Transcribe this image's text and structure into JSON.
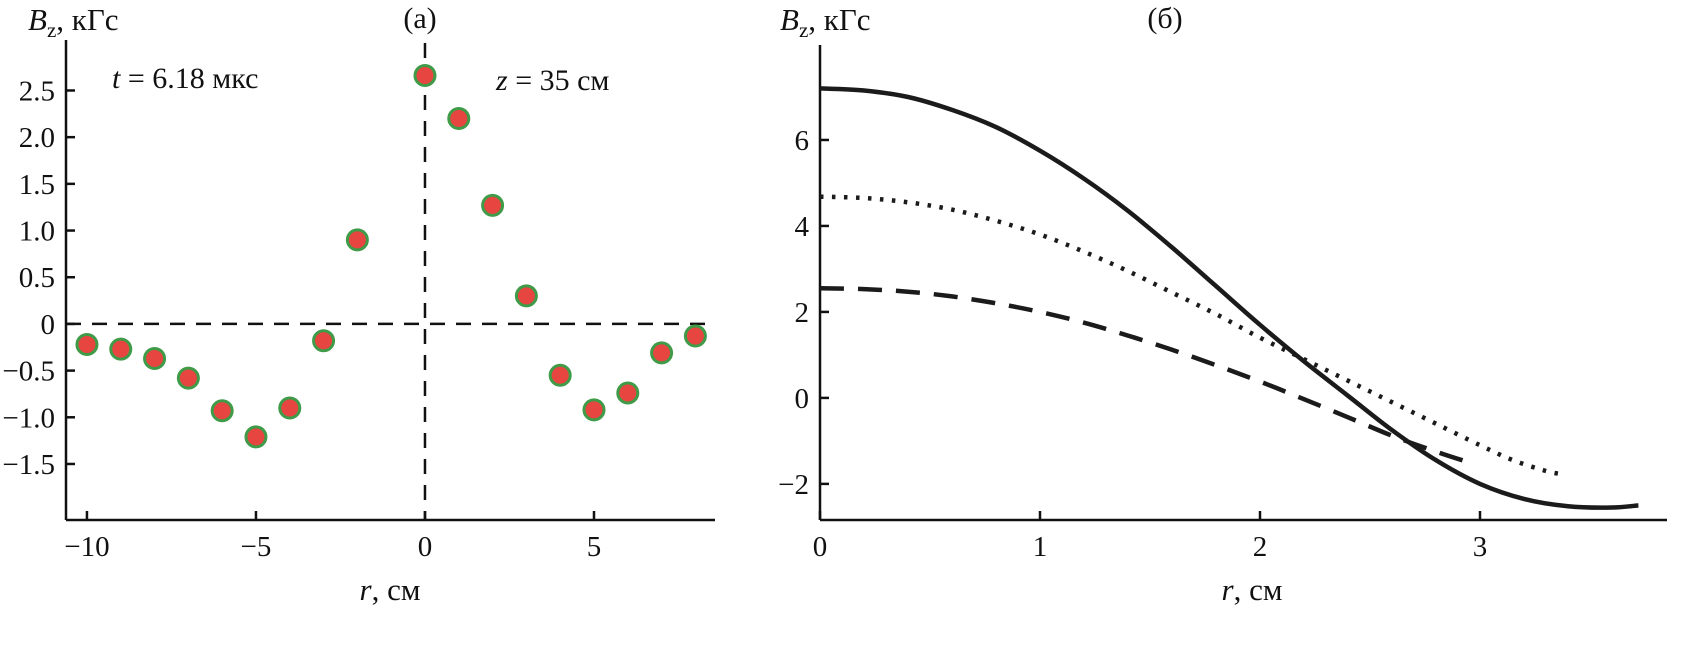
{
  "figure": {
    "background": "#ffffff",
    "axis_color": "#111111"
  },
  "chart_data": [
    {
      "type": "scatter",
      "panel_label": "(а)",
      "ylabel": {
        "var": "B",
        "sub": "z",
        "rest": ", кГс"
      },
      "xlabel": {
        "var": "r",
        "rest": ", см"
      },
      "annotations": [
        {
          "var": "t",
          "rest": " = 6.18 мкс"
        },
        {
          "var": "z",
          "rest": " = 35 см"
        }
      ],
      "xlim": [
        -10.62,
        8.58
      ],
      "ylim": [
        -2.1,
        2.88
      ],
      "xtick_values": [
        -10,
        -5,
        0,
        5
      ],
      "xtick_labels": [
        "−10",
        "−5",
        "0",
        "5"
      ],
      "ytick_values": [
        2.5,
        2,
        1.5,
        1,
        0.5,
        0,
        -0.5,
        -1,
        -1.5
      ],
      "ytick_labels": [
        "2.5",
        "2.0",
        "1.5",
        "1.0",
        "0.5",
        "0",
        "−0.5",
        "−1.0",
        "−1.5"
      ],
      "reference_lines": {
        "horizontal_y": 0,
        "vertical_x": 0,
        "style": "dashed"
      },
      "marker": {
        "fill": "#e64540",
        "stroke": "#3f9b48"
      },
      "points": [
        [
          -10,
          -0.22
        ],
        [
          -9,
          -0.27
        ],
        [
          -8,
          -0.37
        ],
        [
          -7,
          -0.58
        ],
        [
          -6,
          -0.93
        ],
        [
          -5,
          -1.21
        ],
        [
          -4,
          -0.9
        ],
        [
          -3,
          -0.18
        ],
        [
          -2,
          0.9
        ],
        [
          0,
          2.66
        ],
        [
          1,
          2.2
        ],
        [
          2,
          1.27
        ],
        [
          3,
          0.3
        ],
        [
          4,
          -0.55
        ],
        [
          5,
          -0.92
        ],
        [
          6,
          -0.74
        ],
        [
          7,
          -0.31
        ],
        [
          8,
          -0.13
        ]
      ]
    },
    {
      "type": "line",
      "panel_label": "(б)",
      "ylabel": {
        "var": "B",
        "sub": "z",
        "rest": ", кГс"
      },
      "xlabel": {
        "var": "r",
        "rest": ", см"
      },
      "xlim": [
        0,
        3.85
      ],
      "ylim": [
        -2.84,
        7.86
      ],
      "xtick_values": [
        0,
        1,
        2,
        3
      ],
      "xtick_labels": [
        "0",
        "1",
        "2",
        "3"
      ],
      "ytick_values": [
        6,
        4,
        2,
        0,
        -2
      ],
      "ytick_labels": [
        "6",
        "4",
        "2",
        "0",
        "−2"
      ],
      "line_color": "#1b1b1b",
      "series": [
        {
          "name": "solid",
          "dash": "solid",
          "x": [
            0,
            0.2,
            0.4,
            0.6,
            0.8,
            1.0,
            1.2,
            1.4,
            1.6,
            1.8,
            2.0,
            2.2,
            2.4,
            2.6,
            2.8,
            3.0,
            3.2,
            3.4,
            3.6,
            3.72
          ],
          "y": [
            7.2,
            7.15,
            7.0,
            6.7,
            6.3,
            5.75,
            5.1,
            4.35,
            3.5,
            2.6,
            1.7,
            0.85,
            0.05,
            -0.75,
            -1.45,
            -2.0,
            -2.35,
            -2.52,
            -2.55,
            -2.5
          ]
        },
        {
          "name": "dotted",
          "dash": "dotted",
          "x": [
            0,
            0.2,
            0.4,
            0.6,
            0.8,
            1.0,
            1.2,
            1.4,
            1.6,
            1.8,
            2.0,
            2.2,
            2.4,
            2.6,
            2.8,
            3.0,
            3.15,
            3.3,
            3.38
          ],
          "y": [
            4.68,
            4.65,
            4.55,
            4.38,
            4.12,
            3.8,
            3.4,
            2.95,
            2.45,
            1.95,
            1.4,
            0.9,
            0.4,
            -0.1,
            -0.6,
            -1.1,
            -1.45,
            -1.7,
            -1.78
          ]
        },
        {
          "name": "dashed",
          "dash": "dashed",
          "x": [
            0,
            0.2,
            0.4,
            0.6,
            0.8,
            1.0,
            1.2,
            1.4,
            1.6,
            1.8,
            2.0,
            2.2,
            2.4,
            2.6,
            2.8,
            2.95
          ],
          "y": [
            2.55,
            2.53,
            2.47,
            2.36,
            2.2,
            2.0,
            1.75,
            1.45,
            1.12,
            0.76,
            0.38,
            -0.03,
            -0.45,
            -0.88,
            -1.25,
            -1.5
          ]
        }
      ]
    }
  ]
}
